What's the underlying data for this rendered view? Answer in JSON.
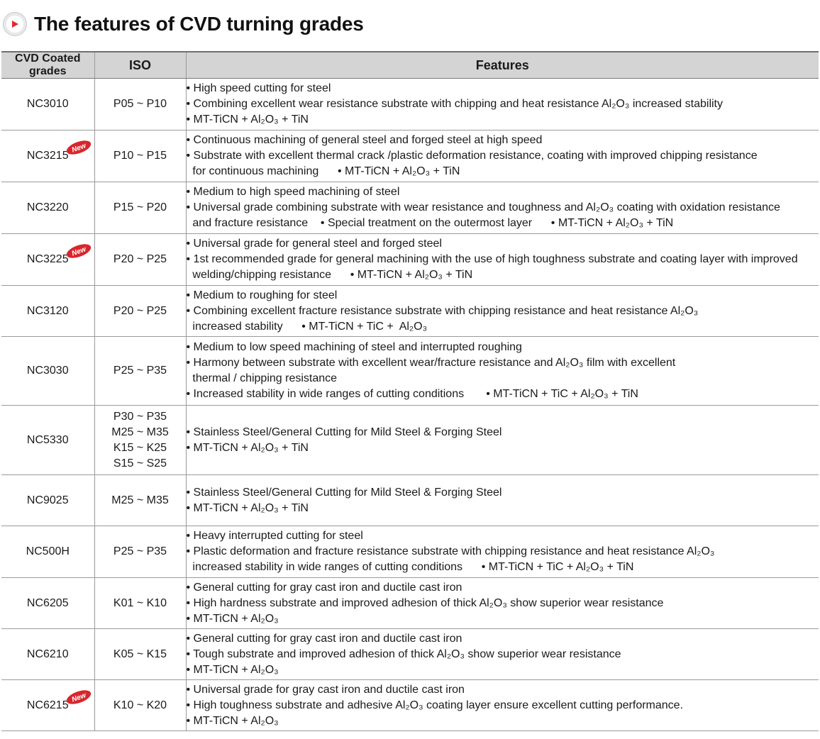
{
  "page": {
    "title": "The features of CVD turning grades"
  },
  "table": {
    "headers": [
      "CVD Coated grades",
      "ISO",
      "Features"
    ],
    "new_badge_label": "New",
    "rows": [
      {
        "grade": "NC3010",
        "is_new": false,
        "iso": [
          "P05 ~ P10"
        ],
        "features": [
          "• High speed cutting for steel",
          "• Combining excellent wear resistance substrate with chipping and heat resistance Al₂O₃ increased stability",
          "• MT-TiCN + Al₂O₃ + TiN"
        ]
      },
      {
        "grade": "NC3215",
        "is_new": true,
        "iso": [
          "P10 ~ P15"
        ],
        "features": [
          "• Continuous machining of general steel and forged steel at high speed",
          "• Substrate with excellent thermal crack /plastic deformation resistance, coating with improved chipping resistance",
          "  for continuous machining      • MT-TiCN + Al₂O₃ + TiN"
        ]
      },
      {
        "grade": "NC3220",
        "is_new": false,
        "iso": [
          "P15 ~ P20"
        ],
        "features": [
          "• Medium to high speed machining of steel",
          "• Universal grade combining substrate with wear resistance and toughness and Al₂O₃ coating with oxidation resistance",
          "  and fracture resistance    • Special treatment on the outermost layer      • MT-TiCN + Al₂O₃ + TiN"
        ]
      },
      {
        "grade": "NC3225",
        "is_new": true,
        "iso": [
          "P20 ~ P25"
        ],
        "features": [
          "• Universal grade for general steel and forged steel",
          "• 1st recommended grade for general machining with the use of high toughness substrate and coating layer with improved",
          "  welding/chipping resistance      • MT-TiCN + Al₂O₃ + TiN"
        ]
      },
      {
        "grade": "NC3120",
        "is_new": false,
        "iso": [
          "P20 ~ P25"
        ],
        "features": [
          "• Medium to roughing for steel",
          "• Combining excellent fracture resistance substrate with chipping resistance and heat resistance Al₂O₃",
          "  increased stability      • MT-TiCN + TiC +  Al₂O₃"
        ]
      },
      {
        "grade": "NC3030",
        "is_new": false,
        "iso": [
          "P25 ~ P35"
        ],
        "features": [
          "• Medium to low speed machining of steel and interrupted roughing",
          "• Harmony between substrate with excellent wear/fracture resistance and Al₂O₃ film with excellent",
          "  thermal / chipping resistance",
          "• Increased stability in wide ranges of cutting conditions       • MT-TiCN + TiC + Al₂O₃ + TiN"
        ]
      },
      {
        "grade": "NC5330",
        "is_new": false,
        "iso": [
          "P30 ~ P35",
          "M25 ~ M35",
          "K15 ~ K25",
          "S15 ~ S25"
        ],
        "features": [
          "• Stainless Steel/General Cutting for Mild Steel & Forging Steel",
          "• MT-TiCN + Al₂O₃ + TiN"
        ]
      },
      {
        "grade": "NC9025",
        "is_new": false,
        "iso": [
          "M25 ~ M35"
        ],
        "features": [
          "• Stainless Steel/General Cutting for Mild Steel & Forging Steel",
          "• MT-TiCN + Al₂O₃ + TiN"
        ]
      },
      {
        "grade": "NC500H",
        "is_new": false,
        "iso": [
          "P25 ~ P35"
        ],
        "features": [
          "• Heavy interrupted cutting for steel",
          "• Plastic deformation and fracture resistance substrate with chipping resistance and heat resistance Al₂O₃",
          "  increased stability in wide ranges of cutting conditions      • MT-TiCN + TiC + Al₂O₃ + TiN"
        ]
      },
      {
        "grade": "NC6205",
        "is_new": false,
        "iso": [
          "K01 ~ K10"
        ],
        "features": [
          "• General cutting for gray cast iron and ductile cast iron",
          "• High hardness substrate and improved adhesion of thick Al₂O₃ show superior wear resistance",
          "• MT-TiCN + Al₂O₃"
        ]
      },
      {
        "grade": "NC6210",
        "is_new": false,
        "iso": [
          "K05 ~ K15"
        ],
        "features": [
          "• General cutting for gray cast iron and ductile cast iron",
          "• Tough substrate and improved adhesion of thick Al₂O₃ show superior wear resistance",
          "• MT-TiCN + Al₂O₃"
        ]
      },
      {
        "grade": "NC6215",
        "is_new": true,
        "iso": [
          "K10 ~ K20"
        ],
        "features": [
          "• Universal grade for gray cast iron and ductile cast iron",
          "• High toughness substrate and adhesive Al₂O₃ coating layer ensure excellent cutting performance.",
          "• MT-TiCN + Al₂O₃"
        ]
      }
    ]
  },
  "colors": {
    "header_bg": "#d4d4d4",
    "badge_red": "#d8262c",
    "play_icon_red": "#e3262e"
  }
}
